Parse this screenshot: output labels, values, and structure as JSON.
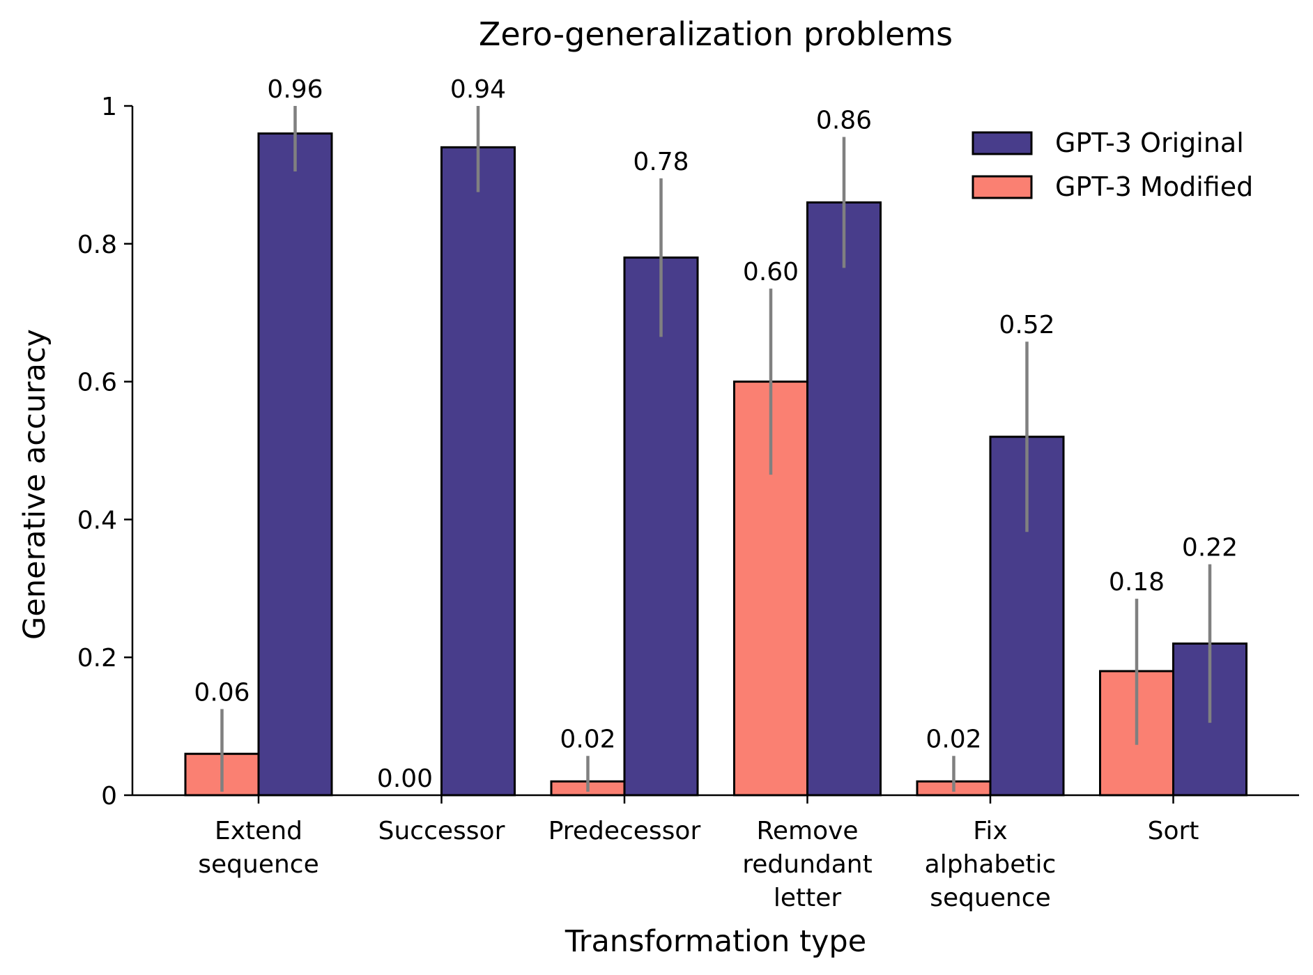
{
  "chart_data": {
    "type": "bar",
    "title": "Zero-generalization problems",
    "xlabel": "Transformation type",
    "ylabel": "Generative accuracy",
    "ylim": [
      0,
      1
    ],
    "yticks": [
      0,
      0.2,
      0.4,
      0.6,
      0.8,
      1
    ],
    "ytick_labels": [
      "0",
      "0.2",
      "0.4",
      "0.6",
      "0.8",
      "1"
    ],
    "categories": [
      [
        "Extend",
        "sequence"
      ],
      [
        "Successor"
      ],
      [
        "Predecessor"
      ],
      [
        "Remove",
        "redundant",
        "letter"
      ],
      [
        "Fix",
        "alphabetic",
        "sequence"
      ],
      [
        "Sort"
      ]
    ],
    "series": [
      {
        "name": "GPT-3 Modified",
        "color": "#fa8072",
        "values": [
          0.06,
          0.0,
          0.02,
          0.6,
          0.02,
          0.18
        ],
        "labels": [
          "0.06",
          "0.00",
          "0.02",
          "0.60",
          "0.02",
          "0.18"
        ],
        "err_low": [
          0.005,
          0.0,
          0.005,
          0.465,
          0.005,
          0.073
        ],
        "err_high": [
          0.125,
          0.0,
          0.057,
          0.735,
          0.057,
          0.285
        ]
      },
      {
        "name": "GPT-3 Original",
        "color": "#483d8b",
        "values": [
          0.96,
          0.94,
          0.78,
          0.86,
          0.52,
          0.22
        ],
        "labels": [
          "0.96",
          "0.94",
          "0.78",
          "0.86",
          "0.52",
          "0.22"
        ],
        "err_low": [
          0.905,
          0.875,
          0.665,
          0.765,
          0.382,
          0.105
        ],
        "err_high": [
          1.0,
          1.0,
          0.895,
          0.955,
          0.658,
          0.335
        ]
      }
    ],
    "error_bar_color": "#808080",
    "legend_position": "top-right",
    "legend_order": [
      "GPT-3 Original",
      "GPT-3 Modified"
    ]
  }
}
